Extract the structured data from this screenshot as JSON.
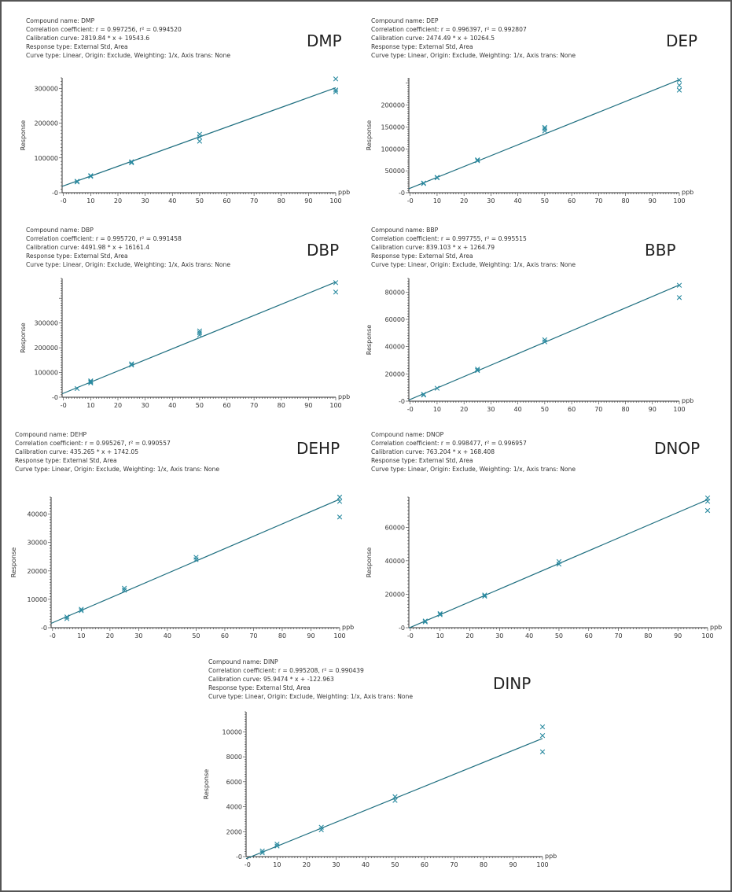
{
  "colors": {
    "line": "#1f6f80",
    "marker": "#2a8aa0",
    "axis": "#333333"
  },
  "labels": {
    "compound_prefix": "Compound name: ",
    "correlation_prefix": "Correlation coefficient: ",
    "calibration_prefix": "Calibration curve: ",
    "ylabel": "Response",
    "xunit": "ppb"
  },
  "chart_data": [
    {
      "type": "scatter",
      "title": "DMP",
      "info": [
        "Compound name: DMP",
        "Correlation coefficient: r = 0.997256, r² = 0.994520",
        "Calibration curve: 2819.84 * x + 19543.6",
        "Response type: External Std, Area",
        "Curve type: Linear, Origin: Exclude, Weighting: 1/x, Axis trans: None"
      ],
      "xlabel": "ppb",
      "ylabel": "Response",
      "xlim": [
        -0.5,
        100
      ],
      "ylim": [
        0,
        330000
      ],
      "xticks": [
        0,
        10,
        20,
        30,
        40,
        50,
        60,
        70,
        80,
        90,
        100
      ],
      "yticks": [
        0,
        100000,
        200000,
        300000
      ],
      "fit": {
        "slope": 2819.84,
        "intercept": 19543.6
      },
      "points": [
        [
          5,
          31000
        ],
        [
          5,
          33000
        ],
        [
          10,
          47000
        ],
        [
          10,
          49000
        ],
        [
          25,
          86000
        ],
        [
          25,
          89000
        ],
        [
          50,
          148000
        ],
        [
          50,
          160000
        ],
        [
          50,
          168000
        ],
        [
          100,
          290000
        ],
        [
          100,
          295000
        ],
        [
          100,
          327000
        ]
      ]
    },
    {
      "type": "scatter",
      "title": "DEP",
      "info": [
        "Compound name: DEP",
        "Correlation coefficient: r = 0.996397, r² = 0.992807",
        "Calibration curve: 2474.49 * x + 10264.5",
        "Response type: External Std, Area",
        "Curve type: Linear, Origin: Exclude, Weighting: 1/x, Axis trans: None"
      ],
      "xlabel": "ppb",
      "ylabel": "Response",
      "xlim": [
        -0.5,
        100
      ],
      "ylim": [
        0,
        262000
      ],
      "xticks": [
        0,
        10,
        20,
        30,
        40,
        50,
        60,
        70,
        80,
        90,
        100
      ],
      "yticks": [
        0,
        50000,
        100000,
        150000,
        200000
      ],
      "fit": {
        "slope": 2474.49,
        "intercept": 10264.5
      },
      "points": [
        [
          5,
          21000
        ],
        [
          5,
          22000
        ],
        [
          10,
          34000
        ],
        [
          10,
          35000
        ],
        [
          25,
          73000
        ],
        [
          25,
          75000
        ],
        [
          50,
          141000
        ],
        [
          50,
          146000
        ],
        [
          50,
          149000
        ],
        [
          100,
          234000
        ],
        [
          100,
          245000
        ],
        [
          100,
          257000
        ]
      ]
    },
    {
      "type": "scatter",
      "title": "DBP",
      "info": [
        "Compound name: DBP",
        "Correlation coefficient: r = 0.995720, r² = 0.991458",
        "Calibration curve: 4491.98 * x + 16161.4",
        "Response type: External Std, Area",
        "Curve type: Linear, Origin: Exclude, Weighting: 1/x, Axis trans: None"
      ],
      "xlabel": "ppb",
      "ylabel": "Response",
      "xlim": [
        -0.5,
        100
      ],
      "ylim": [
        0,
        480000
      ],
      "xticks": [
        0,
        10,
        20,
        30,
        40,
        50,
        60,
        70,
        80,
        90,
        100
      ],
      "yticks": [
        0,
        100000,
        200000,
        300000
      ],
      "fit": {
        "slope": 4491.98,
        "intercept": 16161.4
      },
      "points": [
        [
          5,
          35000
        ],
        [
          10,
          58000
        ],
        [
          10,
          62000
        ],
        [
          10,
          66000
        ],
        [
          25,
          130000
        ],
        [
          25,
          135000
        ],
        [
          50,
          252000
        ],
        [
          50,
          260000
        ],
        [
          50,
          268000
        ],
        [
          100,
          425000
        ],
        [
          100,
          463000
        ]
      ]
    },
    {
      "type": "scatter",
      "title": "BBP",
      "info": [
        "Compound name: BBP",
        "Correlation coefficient: r = 0.997755, r² = 0.995515",
        "Calibration curve: 839.103 * x + 1264.79",
        "Response type: External Std, Area",
        "Curve type: Linear, Origin: Exclude, Weighting: 1/x, Axis trans: None"
      ],
      "xlabel": "ppb",
      "ylabel": "Response",
      "xlim": [
        -0.5,
        100
      ],
      "ylim": [
        0,
        90000
      ],
      "xticks": [
        0,
        10,
        20,
        30,
        40,
        50,
        60,
        70,
        80,
        90,
        100
      ],
      "yticks": [
        0,
        20000,
        40000,
        60000,
        80000
      ],
      "fit": {
        "slope": 839.103,
        "intercept": 1264.79
      },
      "points": [
        [
          5,
          4500
        ],
        [
          5,
          5000
        ],
        [
          10,
          9500
        ],
        [
          25,
          22500
        ],
        [
          25,
          23500
        ],
        [
          50,
          43500
        ],
        [
          50,
          45000
        ],
        [
          100,
          76000
        ],
        [
          100,
          85000
        ]
      ]
    },
    {
      "type": "scatter",
      "title": "DEHP",
      "info": [
        "Compound name: DEHP",
        "Correlation coefficient: r = 0.995267, r² = 0.990557",
        "Calibration curve: 435.265 * x + 1742.05",
        "Response type: External Std, Area",
        "Curve type: Linear, Origin: Exclude, Weighting: 1/x, Axis trans: None"
      ],
      "xlabel": "ppb",
      "ylabel": "Response",
      "xlim": [
        -0.5,
        100
      ],
      "ylim": [
        0,
        46000
      ],
      "xticks": [
        0,
        10,
        20,
        30,
        40,
        50,
        60,
        70,
        80,
        90,
        100
      ],
      "yticks": [
        0,
        10000,
        20000,
        30000,
        40000
      ],
      "fit": {
        "slope": 435.265,
        "intercept": 1742.05
      },
      "points": [
        [
          5,
          3200
        ],
        [
          5,
          3800
        ],
        [
          10,
          6000
        ],
        [
          10,
          6500
        ],
        [
          25,
          13200
        ],
        [
          25,
          13900
        ],
        [
          50,
          24000
        ],
        [
          50,
          24800
        ],
        [
          100,
          39000
        ],
        [
          100,
          44500
        ],
        [
          100,
          46000
        ]
      ]
    },
    {
      "type": "scatter",
      "title": "DNOP",
      "info": [
        "Compound name: DNOP",
        "Correlation coefficient: r = 0.998477, r² = 0.996957",
        "Calibration curve: 763.204 * x + 168.408",
        "Response type: External Std, Area",
        "Curve type: Linear, Origin: Exclude, Weighting: 1/x, Axis trans: None"
      ],
      "xlabel": "ppb",
      "ylabel": "Response",
      "xlim": [
        -0.5,
        100
      ],
      "ylim": [
        0,
        78000
      ],
      "xticks": [
        0,
        10,
        20,
        30,
        40,
        50,
        60,
        70,
        80,
        90,
        100
      ],
      "yticks": [
        0,
        20000,
        40000,
        60000
      ],
      "fit": {
        "slope": 763.204,
        "intercept": 168.408
      },
      "points": [
        [
          5,
          3500
        ],
        [
          5,
          4000
        ],
        [
          10,
          7800
        ],
        [
          10,
          8400
        ],
        [
          25,
          18800
        ],
        [
          25,
          19500
        ],
        [
          50,
          38000
        ],
        [
          50,
          39500
        ],
        [
          100,
          70000
        ],
        [
          100,
          75500
        ],
        [
          100,
          77500
        ]
      ]
    },
    {
      "type": "scatter",
      "title": "DINP",
      "info": [
        "Compound name: DINP",
        "Correlation coefficient: r = 0.995208, r² = 0.990439",
        "Calibration curve: 95.9474 * x + -122.963",
        "Response type: External Std, Area",
        "Curve type: Linear, Origin: Exclude, Weighting: 1/x, Axis trans: None"
      ],
      "xlabel": "ppb",
      "ylabel": "Response",
      "xlim": [
        -0.5,
        100
      ],
      "ylim": [
        0,
        11600
      ],
      "xticks": [
        0,
        10,
        20,
        30,
        40,
        50,
        60,
        70,
        80,
        90,
        100
      ],
      "yticks": [
        0,
        2000,
        4000,
        6000,
        8000,
        10000
      ],
      "fit": {
        "slope": 95.9474,
        "intercept": -122.963
      },
      "points": [
        [
          5,
          300
        ],
        [
          5,
          450
        ],
        [
          10,
          850
        ],
        [
          10,
          1000
        ],
        [
          25,
          2150
        ],
        [
          25,
          2350
        ],
        [
          50,
          4500
        ],
        [
          50,
          4800
        ],
        [
          100,
          8400
        ],
        [
          100,
          9700
        ],
        [
          100,
          10400
        ]
      ]
    }
  ]
}
